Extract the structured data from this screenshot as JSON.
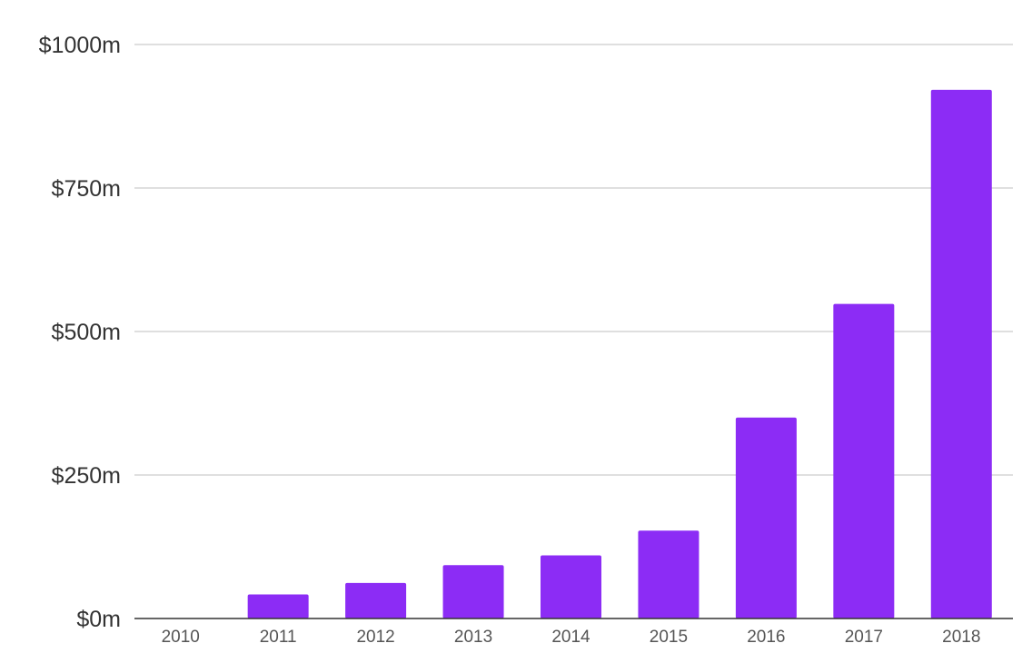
{
  "chart_data": {
    "type": "bar",
    "title": "",
    "xlabel": "",
    "ylabel": "",
    "categories": [
      "2010",
      "2011",
      "2012",
      "2013",
      "2014",
      "2015",
      "2016",
      "2017",
      "2018"
    ],
    "values": [
      0,
      42,
      62,
      93,
      110,
      153,
      350,
      548,
      921
    ],
    "ylim": [
      0,
      1000
    ],
    "yticks": [
      0,
      250,
      500,
      750,
      1000
    ],
    "ytick_labels": [
      "$0m",
      "$250m",
      "$500m",
      "$750m",
      "$1000m"
    ],
    "grid": true,
    "legend": "none",
    "bar_color": "#8c2cf5",
    "grid_color": "#cccccc",
    "axis_color": "#333333"
  }
}
